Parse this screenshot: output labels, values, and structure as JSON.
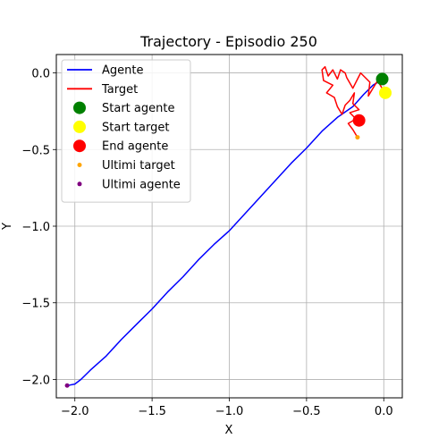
{
  "chart_data": {
    "type": "line",
    "title": "Trajectory - Episodio 250",
    "xlabel": "X",
    "ylabel": "Y",
    "xlim": [
      -2.12,
      0.12
    ],
    "ylim": [
      -2.12,
      0.12
    ],
    "xticks": [
      -2.0,
      -1.5,
      -1.0,
      -0.5,
      0.0
    ],
    "xtick_labels": [
      "−2.0",
      "−1.5",
      "−1.0",
      "−0.5",
      "0.0"
    ],
    "yticks": [
      0.0,
      -0.5,
      -1.0,
      -1.5,
      -2.0
    ],
    "ytick_labels": [
      "0.0",
      "−0.5",
      "−1.0",
      "−1.5",
      "−2.0"
    ],
    "grid": true,
    "legend_position": "top-left",
    "series": [
      {
        "name": "Agente",
        "kind": "line",
        "color": "#0000ff",
        "points": [
          [
            -2.05,
            -2.04
          ],
          [
            -2.0,
            -2.03
          ],
          [
            -1.96,
            -2.0
          ],
          [
            -1.9,
            -1.94
          ],
          [
            -1.8,
            -1.85
          ],
          [
            -1.7,
            -1.74
          ],
          [
            -1.6,
            -1.64
          ],
          [
            -1.5,
            -1.54
          ],
          [
            -1.4,
            -1.43
          ],
          [
            -1.3,
            -1.33
          ],
          [
            -1.2,
            -1.22
          ],
          [
            -1.1,
            -1.12
          ],
          [
            -1.0,
            -1.03
          ],
          [
            -0.9,
            -0.92
          ],
          [
            -0.8,
            -0.81
          ],
          [
            -0.7,
            -0.7
          ],
          [
            -0.6,
            -0.59
          ],
          [
            -0.5,
            -0.49
          ],
          [
            -0.4,
            -0.38
          ],
          [
            -0.3,
            -0.29
          ],
          [
            -0.2,
            -0.22
          ],
          [
            -0.13,
            -0.14
          ],
          [
            -0.07,
            -0.08
          ],
          [
            -0.02,
            -0.05
          ]
        ]
      },
      {
        "name": "Target",
        "kind": "line",
        "color": "#ff0000",
        "points": [
          [
            0.0,
            -0.12
          ],
          [
            -0.04,
            -0.05
          ],
          [
            -0.1,
            -0.15
          ],
          [
            -0.09,
            -0.06
          ],
          [
            -0.15,
            -0.0
          ],
          [
            -0.2,
            -0.1
          ],
          [
            -0.24,
            -0.03
          ],
          [
            -0.25,
            0.0
          ],
          [
            -0.28,
            0.02
          ],
          [
            -0.3,
            -0.04
          ],
          [
            -0.33,
            0.02
          ],
          [
            -0.36,
            -0.02
          ],
          [
            -0.38,
            0.04
          ],
          [
            -0.4,
            0.02
          ],
          [
            -0.39,
            -0.05
          ],
          [
            -0.33,
            -0.08
          ],
          [
            -0.37,
            -0.13
          ],
          [
            -0.32,
            -0.16
          ],
          [
            -0.3,
            -0.22
          ],
          [
            -0.27,
            -0.27
          ],
          [
            -0.25,
            -0.21
          ],
          [
            -0.22,
            -0.18
          ],
          [
            -0.19,
            -0.13
          ],
          [
            -0.2,
            -0.2
          ],
          [
            -0.16,
            -0.24
          ],
          [
            -0.22,
            -0.26
          ],
          [
            -0.18,
            -0.3
          ],
          [
            -0.23,
            -0.33
          ],
          [
            -0.2,
            -0.37
          ],
          [
            -0.17,
            -0.42
          ]
        ]
      },
      {
        "name": "Start agente",
        "kind": "marker",
        "color": "#008000",
        "point": [
          -0.01,
          -0.04
        ]
      },
      {
        "name": "Start target",
        "kind": "marker",
        "color": "#ffff00",
        "point": [
          0.01,
          -0.13
        ]
      },
      {
        "name": "End agente",
        "kind": "marker",
        "color": "#ff0000",
        "point": [
          -0.16,
          -0.31
        ]
      },
      {
        "name": "Ultimi target",
        "kind": "small-marker",
        "color": "#ffa500",
        "point": [
          -0.17,
          -0.42
        ]
      },
      {
        "name": "Ultimi agente",
        "kind": "small-marker",
        "color": "#800080",
        "point": [
          -2.05,
          -2.04
        ]
      }
    ]
  }
}
